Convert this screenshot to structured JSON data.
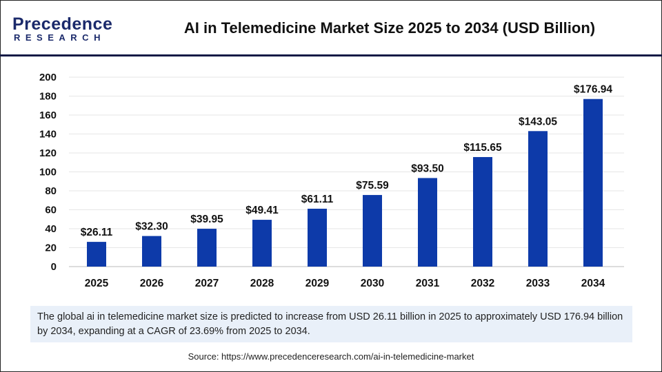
{
  "header": {
    "logo_text": "Precedence",
    "logo_sub": "RESEARCH",
    "title": "AI in Telemedicine Market Size 2025 to 2034 (USD Billion)"
  },
  "chart_data": {
    "type": "bar",
    "title": "AI in Telemedicine Market Size 2025 to 2034 (USD Billion)",
    "xlabel": "",
    "ylabel": "",
    "categories": [
      "2025",
      "2026",
      "2027",
      "2028",
      "2029",
      "2030",
      "2031",
      "2032",
      "2033",
      "2034"
    ],
    "values": [
      26.11,
      32.3,
      39.95,
      49.41,
      61.11,
      75.59,
      93.5,
      115.65,
      143.05,
      176.94
    ],
    "data_labels": [
      "$26.11",
      "$32.30",
      "$39.95",
      "$49.41",
      "$61.11",
      "$75.59",
      "$93.50",
      "$115.65",
      "$143.05",
      "$176.94"
    ],
    "ylim": [
      0,
      200
    ],
    "yticks": [
      0,
      20,
      40,
      60,
      80,
      100,
      120,
      140,
      160,
      180,
      200
    ],
    "grid": true,
    "bar_color": "#0d3aa9"
  },
  "note": "The global ai in telemedicine market size is predicted to increase from USD 26.11 billion in 2025 to approximately USD 176.94 billion by 2034, expanding at a CAGR of 23.69% from 2025 to 2034.",
  "source": "Source: https://www.precedenceresearch.com/ai-in-telemedicine-market"
}
